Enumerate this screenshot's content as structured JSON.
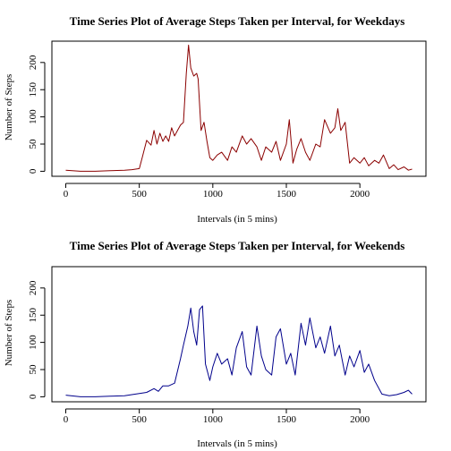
{
  "chart_data": [
    {
      "type": "line",
      "title": "Time Series Plot of Average Steps Taken per Interval, for Weekdays",
      "xlabel": "Intervals (in 5 mins)",
      "ylabel": "Number of Steps",
      "xlim": [
        0,
        2355
      ],
      "ylim": [
        0,
        230
      ],
      "xticks": [
        0,
        500,
        1000,
        1500,
        2000
      ],
      "yticks": [
        0,
        50,
        100,
        150,
        200
      ],
      "grid": false,
      "color": "#8b0000",
      "series": [
        {
          "x": [
            0,
            100,
            200,
            300,
            400,
            450,
            500,
            520,
            550,
            580,
            600,
            620,
            640,
            660,
            680,
            700,
            720,
            740,
            760,
            780,
            800,
            820,
            835,
            850,
            870,
            890,
            900,
            920,
            940,
            960,
            980,
            1000,
            1030,
            1060,
            1100,
            1130,
            1160,
            1200,
            1230,
            1260,
            1300,
            1330,
            1360,
            1400,
            1430,
            1460,
            1500,
            1520,
            1545,
            1570,
            1600,
            1630,
            1660,
            1700,
            1730,
            1760,
            1800,
            1830,
            1850,
            1870,
            1900,
            1930,
            1960,
            2000,
            2030,
            2060,
            2100,
            2130,
            2160,
            2200,
            2230,
            2260,
            2300,
            2330,
            2355
          ],
          "y": [
            2,
            0,
            0,
            1,
            2,
            3,
            5,
            25,
            57,
            48,
            75,
            50,
            70,
            55,
            65,
            55,
            80,
            65,
            75,
            85,
            90,
            180,
            232,
            190,
            175,
            180,
            170,
            75,
            90,
            55,
            25,
            20,
            30,
            35,
            20,
            45,
            35,
            65,
            50,
            60,
            45,
            20,
            45,
            35,
            55,
            20,
            50,
            95,
            15,
            40,
            60,
            35,
            20,
            50,
            45,
            95,
            70,
            80,
            115,
            75,
            90,
            15,
            25,
            15,
            25,
            10,
            20,
            15,
            30,
            5,
            12,
            3,
            8,
            2,
            4
          ]
        }
      ]
    },
    {
      "type": "line",
      "title": "Time Series Plot of Average Steps Taken per Interval, for Weekends",
      "xlabel": "Intervals (in 5 mins)",
      "ylabel": "Number of Steps",
      "xlim": [
        0,
        2355
      ],
      "ylim": [
        0,
        230
      ],
      "xticks": [
        0,
        500,
        1000,
        1500,
        2000
      ],
      "yticks": [
        0,
        50,
        100,
        150,
        200
      ],
      "grid": false,
      "color": "#00008b",
      "series": [
        {
          "x": [
            0,
            100,
            200,
            300,
            400,
            450,
            500,
            550,
            600,
            630,
            660,
            700,
            740,
            780,
            800,
            830,
            850,
            870,
            890,
            910,
            930,
            950,
            980,
            1000,
            1030,
            1060,
            1100,
            1130,
            1160,
            1200,
            1230,
            1260,
            1300,
            1330,
            1360,
            1400,
            1430,
            1460,
            1500,
            1530,
            1560,
            1600,
            1630,
            1660,
            1700,
            1730,
            1760,
            1800,
            1830,
            1860,
            1900,
            1930,
            1960,
            2000,
            2030,
            2060,
            2100,
            2150,
            2200,
            2250,
            2300,
            2330,
            2355
          ],
          "y": [
            3,
            0,
            0,
            1,
            2,
            4,
            6,
            8,
            15,
            10,
            20,
            20,
            25,
            70,
            95,
            130,
            163,
            120,
            95,
            160,
            167,
            60,
            30,
            55,
            80,
            60,
            70,
            40,
            90,
            120,
            55,
            40,
            130,
            75,
            50,
            40,
            110,
            125,
            60,
            80,
            40,
            135,
            95,
            145,
            90,
            110,
            80,
            130,
            75,
            95,
            40,
            75,
            55,
            85,
            45,
            60,
            30,
            5,
            2,
            4,
            8,
            12,
            5
          ]
        }
      ]
    }
  ]
}
